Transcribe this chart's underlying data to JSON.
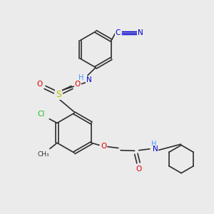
{
  "bg_color": "#ebebeb",
  "bond_color": "#2d2d2d",
  "colors": {
    "N": "#0000cc",
    "O": "#dd0000",
    "S": "#bbbb00",
    "Cl": "#22bb22",
    "CN_blue": "#0000cc",
    "H": "#4499ff"
  }
}
